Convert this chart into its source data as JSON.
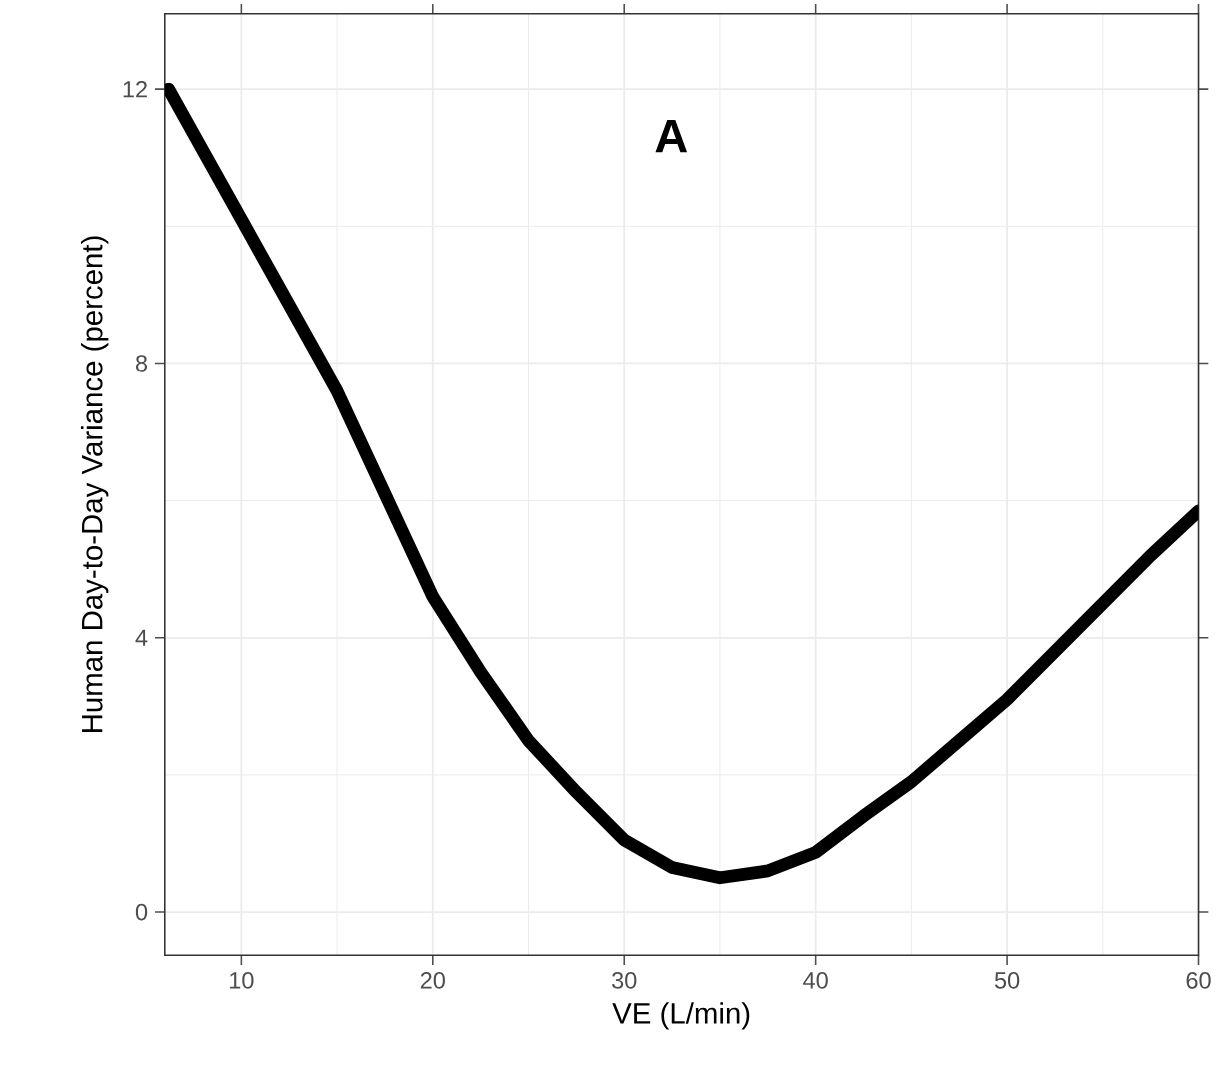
{
  "chart_data": {
    "type": "line",
    "xlabel": "VE (L/min)",
    "ylabel": "Human Day-to-Day Variance (percent)",
    "annotations": [
      "A"
    ],
    "x": [
      6.2,
      8,
      10,
      12.5,
      15,
      17.5,
      20,
      22.5,
      25,
      27.5,
      30,
      32.5,
      35,
      37.5,
      40,
      42.5,
      45,
      47.5,
      50,
      52.5,
      55,
      57.5,
      60
    ],
    "series": [
      {
        "color": "#000000",
        "values": [
          12,
          11.1,
          10.1,
          8.85,
          7.6,
          6.1,
          4.6,
          3.5,
          2.5,
          1.75,
          1.05,
          0.65,
          0.5,
          0.6,
          0.87,
          1.4,
          1.9,
          2.5,
          3.1,
          3.8,
          4.5,
          5.2,
          5.85
        ]
      }
    ],
    "xlim": [
      6,
      60
    ],
    "ylim": [
      -0.63,
      13.1
    ],
    "xticks": [
      10,
      20,
      30,
      40,
      50,
      60
    ],
    "yticks": [
      0,
      4,
      8,
      12
    ],
    "grid": true,
    "marker": "none",
    "line_style": "solid"
  }
}
